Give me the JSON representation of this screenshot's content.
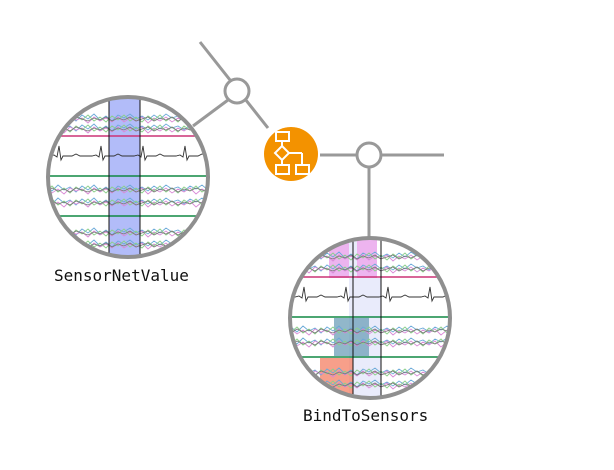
{
  "nodes": {
    "sensor_net_value": {
      "label": "SensorNetValue"
    },
    "bind_to_sensors": {
      "label": "BindToSensors"
    }
  },
  "colors": {
    "connector": "#999999",
    "lens_rim": "#8f8f8f",
    "flow_node": "#f39200",
    "pink_line": "#cc3377",
    "green_line": "#118844",
    "blue_band": "#7f8ff5",
    "violet_band": "#e79be9",
    "teal_band": "#6c9fb8",
    "salmon_band": "#f47f63"
  },
  "icons": {
    "flow_node": "flowchart-icon"
  }
}
